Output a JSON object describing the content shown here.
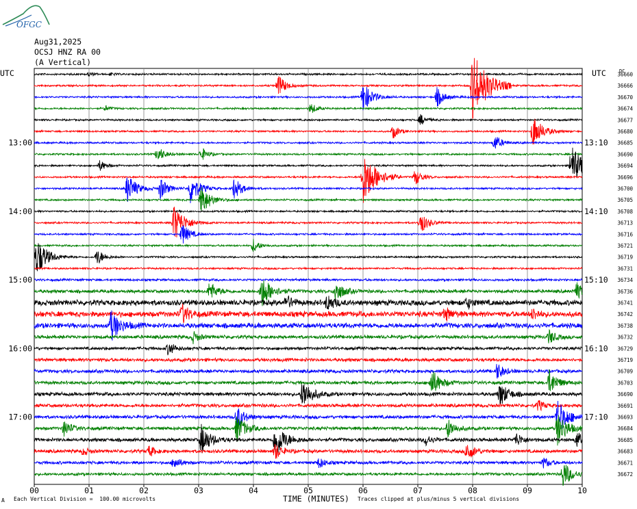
{
  "header": {
    "logo_text": "OFGC",
    "date": "Aug31,2025",
    "station": "OCSJ HNZ RA 00",
    "component": "(A Vertical)"
  },
  "axes": {
    "left_utc": "UTC",
    "right_utc": "UTC",
    "dc_label": "DC",
    "xlabel": "TIME (MINUTES)",
    "x_ticks": [
      "00",
      "01",
      "02",
      "03",
      "04",
      "05",
      "06",
      "07",
      "08",
      "09",
      "10"
    ],
    "left_times": [
      "13:00",
      "14:00",
      "15:00",
      "16:00",
      "17:00"
    ],
    "right_times": [
      "13:10",
      "14:10",
      "15:10",
      "16:10",
      "17:10"
    ]
  },
  "footer": {
    "scale_note": "Each Vertical Division =  100.00 microvolts",
    "clip_note": "Traces clipped at plus/minus 5 vertical divisions",
    "corner_mark": "A"
  },
  "colors": {
    "trace_cycle": [
      "#000000",
      "#ff0000",
      "#0000ff",
      "#007f00"
    ],
    "grid": "#808080"
  },
  "chart_data": {
    "type": "line",
    "title": "OCSJ HNZ RA 00 (A Vertical)",
    "xlabel": "TIME (MINUTES)",
    "xlim": [
      0,
      10
    ],
    "rows_per_hour": 6,
    "minutes_per_row": 10,
    "start_utc": "12:20",
    "dc_offsets": [
      36660,
      36666,
      36670,
      36674,
      36677,
      36680,
      36685,
      36690,
      36694,
      36696,
      36700,
      36705,
      36708,
      36713,
      36716,
      36721,
      36719,
      36731,
      36734,
      36736,
      36741,
      36742,
      36738,
      36732,
      36729,
      36719,
      36709,
      36703,
      36690,
      36691,
      36693,
      36684,
      36685,
      36683,
      36671,
      36672
    ],
    "row_noise": [
      1.2,
      1.2,
      1.2,
      1.2,
      1.2,
      1.2,
      1.2,
      1.2,
      1.2,
      1.2,
      1.2,
      1.2,
      1.2,
      1.2,
      1.2,
      1.2,
      1.2,
      1.2,
      1.5,
      2.2,
      3.6,
      3.6,
      3.3,
      2.3,
      2.0,
      2.2,
      2.2,
      2.2,
      2.3,
      2.2,
      2.2,
      2.2,
      2.3,
      2.2,
      2.0,
      1.8
    ],
    "events": [
      [
        0,
        1.0,
        3
      ],
      [
        0,
        1.4,
        2
      ],
      [
        1,
        4.45,
        16
      ],
      [
        1,
        8.0,
        50
      ],
      [
        2,
        6.0,
        22
      ],
      [
        2,
        7.35,
        14
      ],
      [
        3,
        1.3,
        4
      ],
      [
        3,
        5.05,
        8
      ],
      [
        4,
        7.05,
        8
      ],
      [
        5,
        6.55,
        10
      ],
      [
        5,
        9.1,
        24
      ],
      [
        6,
        8.4,
        12
      ],
      [
        7,
        2.25,
        12
      ],
      [
        7,
        3.05,
        10
      ],
      [
        8,
        1.2,
        8
      ],
      [
        8,
        9.8,
        30
      ],
      [
        9,
        6.0,
        40
      ],
      [
        9,
        6.95,
        12
      ],
      [
        10,
        1.7,
        22
      ],
      [
        10,
        2.3,
        16
      ],
      [
        10,
        2.85,
        22
      ],
      [
        10,
        3.65,
        16
      ],
      [
        11,
        3.05,
        22
      ],
      [
        13,
        2.55,
        28
      ],
      [
        13,
        7.05,
        16
      ],
      [
        14,
        2.7,
        16
      ],
      [
        15,
        4.0,
        10
      ],
      [
        16,
        0.05,
        28
      ],
      [
        16,
        1.15,
        12
      ],
      [
        19,
        3.2,
        14
      ],
      [
        19,
        4.15,
        24
      ],
      [
        19,
        5.5,
        16
      ],
      [
        19,
        9.9,
        12
      ],
      [
        20,
        4.6,
        10
      ],
      [
        20,
        5.35,
        12
      ],
      [
        20,
        7.9,
        8
      ],
      [
        21,
        2.7,
        14
      ],
      [
        21,
        7.5,
        10
      ],
      [
        21,
        9.1,
        8
      ],
      [
        22,
        1.4,
        22
      ],
      [
        23,
        2.9,
        8
      ],
      [
        23,
        9.4,
        10
      ],
      [
        24,
        2.45,
        10
      ],
      [
        26,
        8.45,
        12
      ],
      [
        27,
        7.25,
        20
      ],
      [
        27,
        9.4,
        18
      ],
      [
        28,
        4.9,
        22
      ],
      [
        28,
        8.5,
        18
      ],
      [
        29,
        9.2,
        8
      ],
      [
        30,
        3.7,
        16
      ],
      [
        30,
        9.55,
        26
      ],
      [
        31,
        0.55,
        12
      ],
      [
        31,
        3.7,
        20
      ],
      [
        31,
        7.55,
        14
      ],
      [
        31,
        9.55,
        24
      ],
      [
        32,
        3.05,
        22
      ],
      [
        32,
        4.4,
        26
      ],
      [
        32,
        7.15,
        8
      ],
      [
        32,
        8.8,
        10
      ],
      [
        32,
        9.9,
        12
      ],
      [
        33,
        0.9,
        6
      ],
      [
        33,
        2.1,
        8
      ],
      [
        33,
        4.4,
        12
      ],
      [
        33,
        7.9,
        14
      ],
      [
        34,
        2.55,
        10
      ],
      [
        34,
        5.2,
        8
      ],
      [
        34,
        9.3,
        8
      ],
      [
        35,
        9.65,
        20
      ]
    ]
  }
}
